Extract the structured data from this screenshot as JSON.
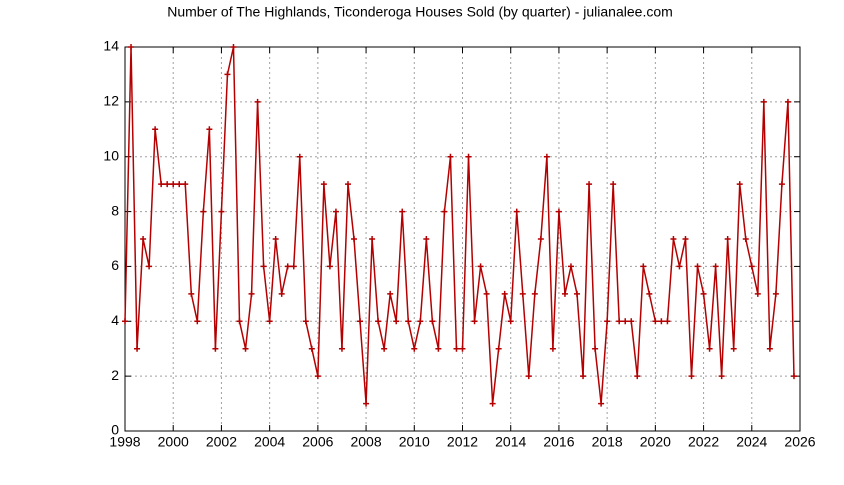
{
  "chart_data": {
    "type": "line",
    "title": "Number of The Highlands, Ticonderoga Houses Sold (by quarter) - julianalee.com",
    "x": [
      1998,
      1998.25,
      1998.5,
      1998.75,
      1999,
      1999.25,
      1999.5,
      1999.75,
      2000,
      2000.25,
      2000.5,
      2000.75,
      2001,
      2001.25,
      2001.5,
      2001.75,
      2002,
      2002.25,
      2002.5,
      2002.75,
      2003,
      2003.25,
      2003.5,
      2003.75,
      2004,
      2004.25,
      2004.5,
      2004.75,
      2005,
      2005.25,
      2005.5,
      2005.75,
      2006,
      2006.25,
      2006.5,
      2006.75,
      2007,
      2007.25,
      2007.5,
      2007.75,
      2008,
      2008.25,
      2008.5,
      2008.75,
      2009,
      2009.25,
      2009.5,
      2009.75,
      2010,
      2010.25,
      2010.5,
      2010.75,
      2011,
      2011.25,
      2011.5,
      2011.75,
      2012,
      2012.25,
      2012.5,
      2012.75,
      2013,
      2013.25,
      2013.5,
      2013.75,
      2014,
      2014.25,
      2014.5,
      2014.75,
      2015,
      2015.25,
      2015.5,
      2015.75,
      2016,
      2016.25,
      2016.5,
      2016.75,
      2017,
      2017.25,
      2017.5,
      2017.75,
      2018,
      2018.25,
      2018.5,
      2018.75,
      2019,
      2019.25,
      2019.5,
      2019.75,
      2020,
      2020.25,
      2020.5,
      2020.75,
      2021,
      2021.25,
      2021.5,
      2021.75,
      2022,
      2022.25,
      2022.5,
      2022.75,
      2023,
      2023.25,
      2023.5,
      2023.75,
      2024,
      2024.25,
      2024.5,
      2024.75,
      2025,
      2025.25,
      2025.5,
      2025.75
    ],
    "series": [
      {
        "color": "#b40000",
        "values": [
          4,
          14,
          3,
          7,
          6,
          11,
          9,
          9,
          9,
          9,
          9,
          5,
          4,
          8,
          11,
          3,
          8,
          13,
          14,
          4,
          3,
          5,
          12,
          6,
          4,
          7,
          5,
          6,
          6,
          10,
          4,
          3,
          2,
          9,
          6,
          8,
          3,
          9,
          7,
          4,
          1,
          7,
          4,
          3,
          5,
          4,
          8,
          4,
          3,
          4,
          7,
          4,
          3,
          8,
          10,
          3,
          3,
          10,
          4,
          6,
          5,
          1,
          3,
          5,
          4,
          8,
          5,
          2,
          5,
          7,
          10,
          3,
          8,
          5,
          6,
          5,
          2,
          9,
          3,
          1,
          4,
          9,
          4,
          4,
          4,
          2,
          6,
          5,
          4,
          4,
          4,
          7,
          6,
          7,
          2,
          6,
          5,
          3,
          6,
          2,
          7,
          3,
          9,
          7,
          6,
          5,
          12,
          3,
          5,
          9,
          12,
          2
        ]
      }
    ],
    "xlim": [
      1998,
      2026
    ],
    "xticks": [
      1998,
      2000,
      2002,
      2004,
      2006,
      2008,
      2010,
      2012,
      2014,
      2016,
      2018,
      2020,
      2022,
      2024,
      2026
    ],
    "ylim": [
      0,
      14
    ],
    "yticks": [
      0,
      2,
      4,
      6,
      8,
      10,
      12,
      14
    ],
    "grid": true
  }
}
